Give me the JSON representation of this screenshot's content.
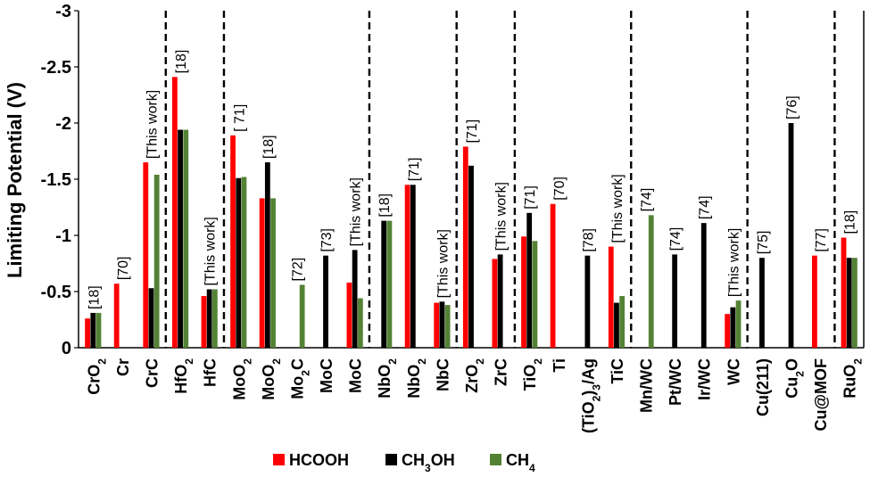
{
  "chart_data": {
    "type": "bar",
    "title": "",
    "ylabel": "Limiting Potential (V)",
    "xlabel": "",
    "ylim": [
      0,
      -3
    ],
    "yticks": [
      "-3",
      "-2.5",
      "-2",
      "-1.5",
      "-1",
      "-0.5",
      "0"
    ],
    "grid": false,
    "legend_position": "bottom",
    "colors": {
      "HCOOH": "#ff0000",
      "CH3OH": "#000000",
      "CH4": "#548235"
    },
    "series": [
      {
        "name": "HCOOH",
        "legend_label": "HCOOH",
        "values": [
          -0.26,
          -0.57,
          -1.65,
          -2.41,
          -0.46,
          -1.89,
          -1.33,
          null,
          null,
          -0.58,
          null,
          -1.45,
          -0.4,
          -1.79,
          -0.79,
          -0.99,
          -1.28,
          null,
          -0.9,
          null,
          null,
          null,
          -0.3,
          null,
          null,
          -0.82,
          -0.98
        ]
      },
      {
        "name": "CH3OH",
        "legend_label": "CH3OH",
        "values": [
          -0.31,
          null,
          -0.53,
          -1.94,
          -0.52,
          -1.51,
          -1.65,
          null,
          -0.82,
          -0.87,
          -1.13,
          -1.45,
          -0.41,
          -1.62,
          -0.83,
          -1.2,
          null,
          -0.82,
          -0.4,
          null,
          -0.83,
          -1.11,
          -0.36,
          -0.8,
          -2.0,
          null,
          -0.8
        ]
      },
      {
        "name": "CH4",
        "legend_label": "CH4",
        "values": [
          -0.31,
          null,
          -1.54,
          -1.94,
          -0.52,
          -1.52,
          -1.33,
          -0.56,
          null,
          -0.44,
          -1.13,
          null,
          -0.38,
          null,
          null,
          -0.95,
          null,
          null,
          -0.46,
          -1.18,
          null,
          null,
          -0.42,
          null,
          null,
          null,
          -0.8
        ]
      }
    ],
    "categories": [
      {
        "base": "CrO",
        "sub": "2",
        "tail": ""
      },
      {
        "base": "Cr",
        "sub": "",
        "tail": ""
      },
      {
        "base": "CrC",
        "sub": "",
        "tail": ""
      },
      {
        "base": "HfO",
        "sub": "2",
        "tail": ""
      },
      {
        "base": "HfC",
        "sub": "",
        "tail": ""
      },
      {
        "base": "MoO",
        "sub": "2",
        "tail": ""
      },
      {
        "base": "MoO",
        "sub": "2",
        "tail": ""
      },
      {
        "base": "Mo",
        "sub": "2",
        "tail": "C"
      },
      {
        "base": "MoC",
        "sub": "",
        "tail": ""
      },
      {
        "base": "MoC",
        "sub": "",
        "tail": ""
      },
      {
        "base": "NbO",
        "sub": "2",
        "tail": ""
      },
      {
        "base": "NbO",
        "sub": "2",
        "tail": ""
      },
      {
        "base": "NbC",
        "sub": "",
        "tail": ""
      },
      {
        "base": "ZrO",
        "sub": "2",
        "tail": ""
      },
      {
        "base": "ZrC",
        "sub": "",
        "tail": ""
      },
      {
        "base": "TiO",
        "sub": "2",
        "tail": ""
      },
      {
        "base": "Ti",
        "sub": "",
        "tail": ""
      },
      {
        "base": "(TiO",
        "sub": "2",
        "tail": ")",
        "sub2": "3",
        "tail2": "/Ag"
      },
      {
        "base": "TiC",
        "sub": "",
        "tail": ""
      },
      {
        "base": "Mn/WC",
        "sub": "",
        "tail": ""
      },
      {
        "base": "Pt/WC",
        "sub": "",
        "tail": ""
      },
      {
        "base": "Ir/WC",
        "sub": "",
        "tail": ""
      },
      {
        "base": "WC",
        "sub": "",
        "tail": ""
      },
      {
        "base": "Cu(211)",
        "sub": "",
        "tail": ""
      },
      {
        "base": "Cu",
        "sub": "2",
        "tail": "O"
      },
      {
        "base": "Cu@MOF",
        "sub": "",
        "tail": ""
      },
      {
        "base": "RuO",
        "sub": "2",
        "tail": ""
      }
    ],
    "references": [
      "[18]",
      "[70]",
      "[This work]",
      "[18]",
      "[This work]",
      "[ 71]",
      "[18]",
      "[72]",
      "[73]",
      "[This work]",
      "[18]",
      "[71]",
      "[This work]",
      "[71]",
      "[This work]",
      "[71]",
      "[70]",
      "[78]",
      "[This work]",
      "[74]",
      "[74]",
      "[74]",
      "[This work]",
      "[75]",
      "[76]",
      "[77]",
      "[18]"
    ],
    "group_separators_after_index": [
      2,
      4,
      9,
      12,
      14,
      18,
      22,
      25
    ],
    "legend": [
      {
        "base": "HCOOH",
        "sub": "",
        "tail": ""
      },
      {
        "base": "CH",
        "sub": "3",
        "tail": "OH"
      },
      {
        "base": "CH",
        "sub": "4",
        "tail": ""
      }
    ]
  }
}
